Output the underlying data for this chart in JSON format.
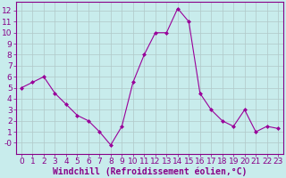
{
  "x": [
    0,
    1,
    2,
    3,
    4,
    5,
    6,
    7,
    8,
    9,
    10,
    11,
    12,
    13,
    14,
    15,
    16,
    17,
    18,
    19,
    20,
    21,
    22,
    23
  ],
  "y": [
    5,
    5.5,
    6,
    4.5,
    3.5,
    2.5,
    2,
    1,
    -0.2,
    1.5,
    5.5,
    8,
    10,
    10,
    12.2,
    11,
    4.5,
    3,
    2,
    1.5,
    3,
    1,
    1.5,
    1.3
  ],
  "line_color": "#990099",
  "marker": "D",
  "marker_size": 2,
  "bg_color": "#c8ecec",
  "grid_color": "#b0c8c8",
  "xlabel": "Windchill (Refroidissement éolien,°C)",
  "xlim": [
    -0.5,
    23.5
  ],
  "ylim": [
    -1,
    12.8
  ],
  "yticks": [
    0,
    1,
    2,
    3,
    4,
    5,
    6,
    7,
    8,
    9,
    10,
    11,
    12
  ],
  "ytick_labels": [
    "-0",
    "1",
    "2",
    "3",
    "4",
    "5",
    "6",
    "7",
    "8",
    "9",
    "10",
    "11",
    "12"
  ],
  "xticks": [
    0,
    1,
    2,
    3,
    4,
    5,
    6,
    7,
    8,
    9,
    10,
    11,
    12,
    13,
    14,
    15,
    16,
    17,
    18,
    19,
    20,
    21,
    22,
    23
  ],
  "xlabel_color": "#880088",
  "tick_color": "#880088",
  "spine_color": "#880088",
  "axis_label_fontsize": 7,
  "tick_fontsize": 6.5
}
